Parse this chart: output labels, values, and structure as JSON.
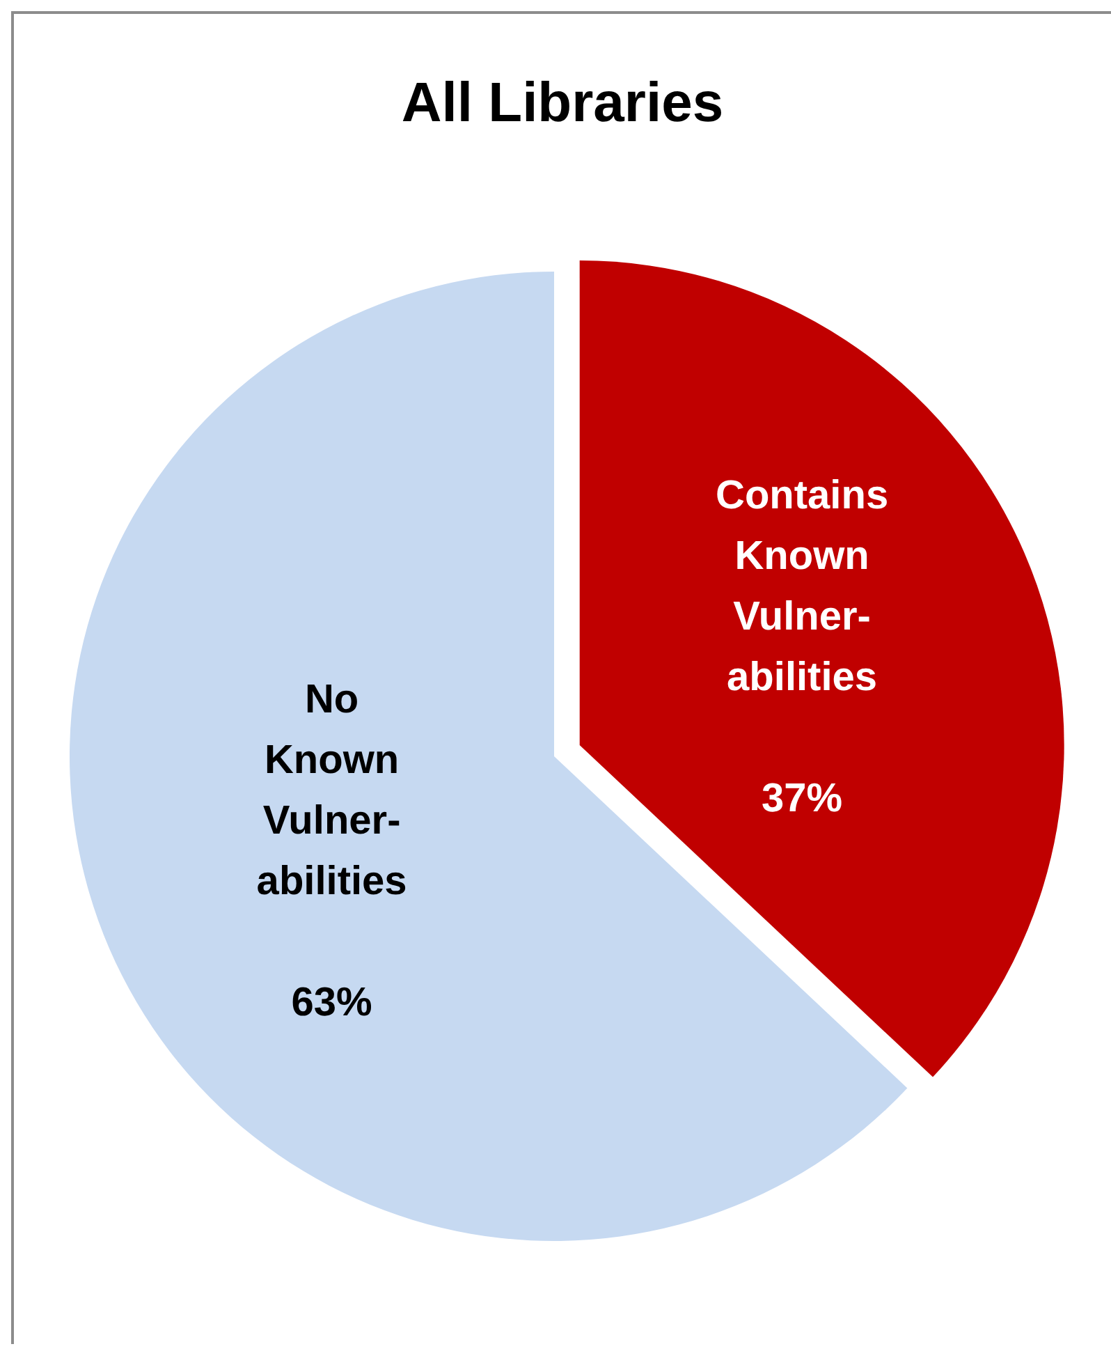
{
  "chart_data": {
    "type": "pie",
    "title": "All Libraries",
    "categories": [
      "Contains Known Vulner-abilities",
      "No Known Vulner-abilities"
    ],
    "values": [
      37,
      63
    ],
    "colors": [
      "#c00000",
      "#c6d9f1"
    ],
    "value_labels": [
      "37%",
      "63%"
    ],
    "legend": false
  }
}
